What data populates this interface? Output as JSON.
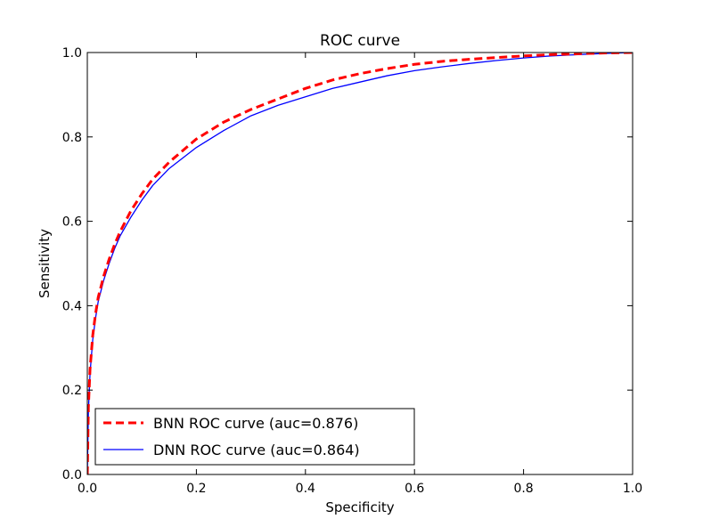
{
  "chart_data": {
    "type": "line",
    "title": "ROC curve",
    "xlabel": "Specificity",
    "ylabel": "Sensitivity",
    "xlim": [
      0.0,
      1.0
    ],
    "ylim": [
      0.0,
      1.0
    ],
    "xticks": [
      "0.0",
      "0.2",
      "0.4",
      "0.6",
      "0.8",
      "1.0"
    ],
    "yticks": [
      "0.0",
      "0.2",
      "0.4",
      "0.6",
      "0.8",
      "1.0"
    ],
    "grid": false,
    "legend_position": "lower-left",
    "series": [
      {
        "name": "BNN ROC curve (auc=0.876)",
        "color": "#ff0000",
        "style": "dashed",
        "x": [
          0.0,
          0.002,
          0.005,
          0.01,
          0.015,
          0.02,
          0.03,
          0.04,
          0.05,
          0.06,
          0.08,
          0.1,
          0.12,
          0.15,
          0.2,
          0.25,
          0.3,
          0.35,
          0.4,
          0.45,
          0.5,
          0.55,
          0.6,
          0.65,
          0.7,
          0.75,
          0.8,
          0.85,
          0.9,
          0.95,
          1.0
        ],
        "y": [
          0.0,
          0.16,
          0.25,
          0.33,
          0.38,
          0.42,
          0.47,
          0.51,
          0.545,
          0.575,
          0.625,
          0.665,
          0.7,
          0.74,
          0.795,
          0.835,
          0.865,
          0.89,
          0.915,
          0.935,
          0.95,
          0.962,
          0.972,
          0.979,
          0.984,
          0.988,
          0.992,
          0.995,
          0.997,
          0.999,
          1.0
        ]
      },
      {
        "name": "DNN ROC curve (auc=0.864)",
        "color": "#0000ff",
        "style": "solid",
        "x": [
          0.0,
          0.002,
          0.005,
          0.01,
          0.015,
          0.02,
          0.03,
          0.04,
          0.05,
          0.06,
          0.08,
          0.1,
          0.12,
          0.15,
          0.2,
          0.25,
          0.3,
          0.35,
          0.4,
          0.45,
          0.5,
          0.55,
          0.6,
          0.65,
          0.7,
          0.75,
          0.8,
          0.85,
          0.9,
          0.95,
          1.0
        ],
        "y": [
          0.0,
          0.15,
          0.24,
          0.32,
          0.37,
          0.41,
          0.46,
          0.5,
          0.535,
          0.565,
          0.61,
          0.65,
          0.685,
          0.725,
          0.775,
          0.815,
          0.85,
          0.875,
          0.895,
          0.915,
          0.93,
          0.945,
          0.957,
          0.966,
          0.974,
          0.981,
          0.987,
          0.992,
          0.995,
          0.998,
          1.0
        ]
      }
    ]
  }
}
